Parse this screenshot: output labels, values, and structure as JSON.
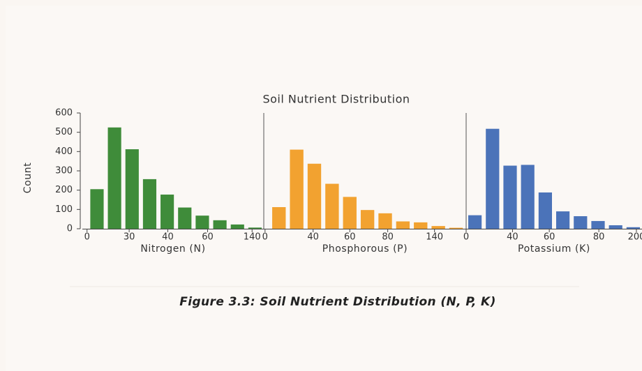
{
  "chart_data": [
    {
      "type": "histogram",
      "title": "Soil Nutrient Distribution",
      "ylabel": "Count",
      "xlabel": "Nitrogen (N)",
      "color": "#3f8c3a",
      "bins": [
        5,
        20,
        35,
        50,
        65,
        80,
        95,
        110,
        125,
        140,
        155
      ],
      "values": [
        205,
        525,
        412,
        257,
        177,
        110,
        68,
        44,
        22,
        6
      ],
      "xlim": [
        0,
        155
      ],
      "ylim": [
        0,
        600
      ],
      "yticks": [
        0,
        100,
        200,
        300,
        400,
        500,
        600
      ],
      "xticks": [
        {
          "value": 4,
          "label": "0"
        },
        {
          "value": 40,
          "label": "30"
        },
        {
          "value": 73,
          "label": "40"
        },
        {
          "value": 107,
          "label": "60"
        },
        {
          "value": 145,
          "label": "140"
        }
      ]
    },
    {
      "type": "histogram",
      "xlabel": "Phosphorous (P)",
      "color": "#f2a230",
      "bins": [
        5,
        19,
        33,
        47,
        61,
        75,
        89,
        103,
        117,
        131,
        145,
        159
      ],
      "values": [
        112,
        410,
        337,
        233,
        165,
        97,
        80,
        38,
        33,
        14,
        5
      ],
      "xlim": [
        0,
        160
      ],
      "ylim": [
        0,
        600
      ],
      "xticks": [
        {
          "value": 1,
          "label": "0"
        },
        {
          "value": 39,
          "label": "40"
        },
        {
          "value": 68,
          "label": "60"
        },
        {
          "value": 98,
          "label": "80"
        },
        {
          "value": 135,
          "label": "140"
        }
      ]
    },
    {
      "type": "histogram",
      "xlabel": "Potassium (K)",
      "color": "#4b73b9",
      "bins": [
        0,
        22,
        44,
        66,
        88,
        110,
        132,
        154,
        176,
        198,
        220
      ],
      "values": [
        70,
        518,
        327,
        331,
        188,
        90,
        65,
        40,
        18,
        8
      ],
      "xlim": [
        0,
        220
      ],
      "ylim": [
        0,
        600
      ],
      "xticks": [
        {
          "value": 0,
          "label": "0"
        },
        {
          "value": 58,
          "label": "40"
        },
        {
          "value": 104,
          "label": "60"
        },
        {
          "value": 166,
          "label": "80"
        },
        {
          "value": 213,
          "label": "200"
        }
      ]
    }
  ],
  "caption": "Figure 3.3: Soil Nutrient Distribution (N, P, K)"
}
